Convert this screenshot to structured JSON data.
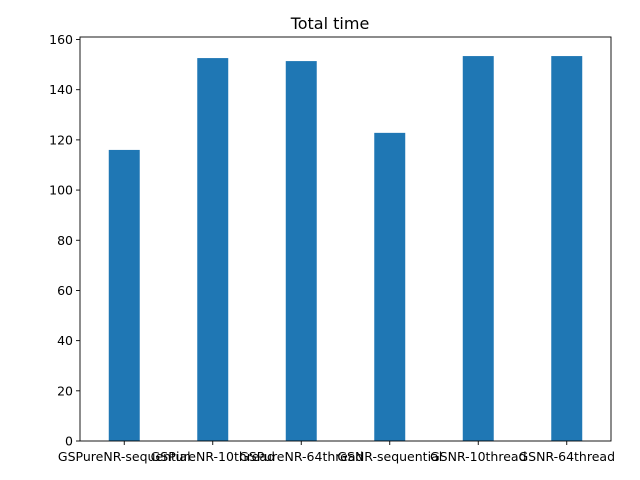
{
  "chart_data": {
    "type": "bar",
    "title": "Total time",
    "xlabel": "",
    "ylabel": "",
    "categories": [
      "GSPureNR-sequential",
      "GSPureNR-10thread",
      "GSPureNR-64thread",
      "GSNR-sequential",
      "GSNR-10thread",
      "GSNR-64thread"
    ],
    "values": [
      116,
      152.6,
      151.4,
      122.8,
      153.4,
      153.4
    ],
    "ylim": [
      0,
      161
    ],
    "yticks": [
      "0",
      "20",
      "40",
      "60",
      "80",
      "100",
      "120",
      "140",
      "160"
    ],
    "grid": false,
    "bar_color": "#1f77b4"
  }
}
